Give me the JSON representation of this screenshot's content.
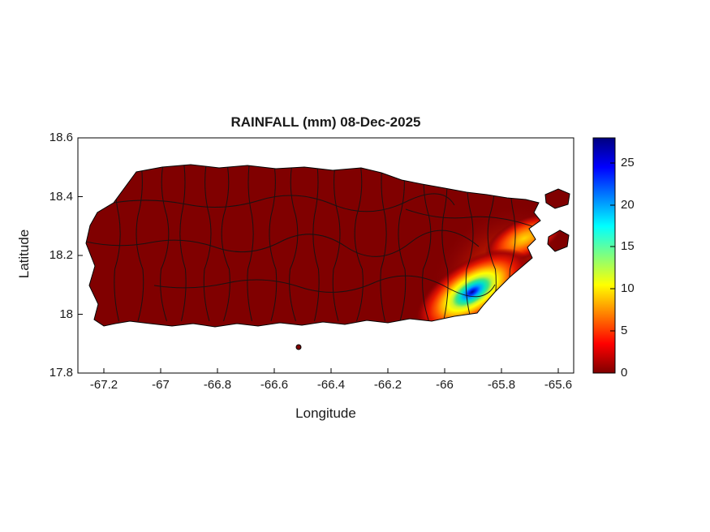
{
  "figure": {
    "title": "RAINFALL (mm) 08-Dec-2025",
    "xlabel": "Longitude",
    "ylabel": "Latitude",
    "background_color": "#ffffff"
  },
  "axes": {
    "xticks": [
      "-67.2",
      "-67",
      "-66.8",
      "-66.6",
      "-66.4",
      "-66.2",
      "-66",
      "-65.8",
      "-65.6"
    ],
    "yticks": [
      "18.6",
      "18.4",
      "18.2",
      "18",
      "17.8"
    ],
    "xlim": [
      -67.3,
      -65.55
    ],
    "ylim": [
      17.8,
      18.6
    ]
  },
  "colorbar": {
    "ticks": [
      "0",
      "5",
      "10",
      "15",
      "20",
      "25"
    ],
    "range": [
      0,
      28
    ],
    "colormap_name": "jet (reversed: 0 = dark red, max = dark blue)",
    "colormap_stops_bottom_to_top": [
      "#7F0000",
      "#FF0000",
      "#FF8000",
      "#FFFF00",
      "#7FFF7F",
      "#00FFFF",
      "#0080FF",
      "#0000FF",
      "#00007F"
    ]
  },
  "map": {
    "region": "Puerto Rico",
    "boundaries": "municipality boundaries (black)",
    "base_fill_color": "#800000",
    "boundary_color": "#000000"
  },
  "chart_data": {
    "type": "heatmap",
    "title": "RAINFALL (mm) 08-Dec-2025",
    "xlabel": "Longitude",
    "ylabel": "Latitude",
    "xlim": [
      -67.3,
      -65.55
    ],
    "ylim": [
      17.8,
      18.6
    ],
    "xticks": [
      -67.2,
      -67,
      -66.8,
      -66.6,
      -66.4,
      -66.2,
      -66,
      -65.8,
      -65.6
    ],
    "yticks": [
      18.6,
      18.4,
      18.2,
      18,
      17.8
    ],
    "colorbar_ticks": [
      0,
      5,
      10,
      15,
      20,
      25
    ],
    "colorbar_range": [
      0,
      28
    ],
    "colormap": "jet reversed (0 mm = dark red, ~28 mm = dark blue)",
    "field_description": "Rainfall field over Puerto Rico; nearly the entire island at 0 mm (dark red); localized heavy-rain cell over the southeast with a band extending to the northeast",
    "maxima": [
      {
        "lon": -65.9,
        "lat": 18.07,
        "value_mm": 27,
        "note": "peak rainfall cell (dark blue core), southeastern Puerto Rico"
      },
      {
        "lon": -65.78,
        "lat": 18.25,
        "value_mm": 10,
        "note": "secondary orange/yellow band, northeastern Puerto Rico"
      }
    ],
    "background_value_mm": 0,
    "legend_position": "right colorbar",
    "grid": false
  }
}
